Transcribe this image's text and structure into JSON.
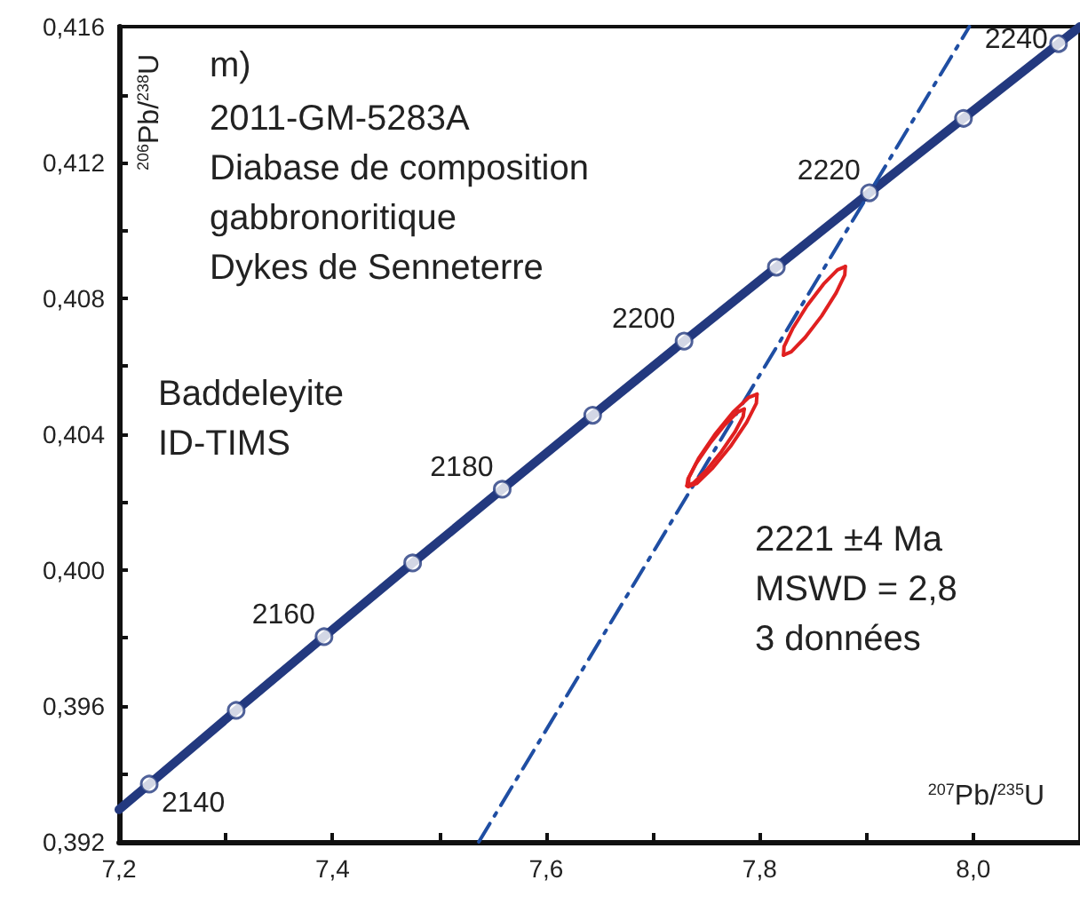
{
  "chart_data": {
    "type": "line",
    "title": "m)",
    "subtitle": "2011-GM-5283A\nDiabase de composition\ngabbronoritique\nDykes de Senneterre",
    "xlabel": "$^{207}$Pb/$^{235}$U",
    "ylabel": "$^{206}$Pb/$^{238}$U",
    "xlim": [
      7.2,
      8.1
    ],
    "ylim": [
      0.392,
      0.416
    ],
    "xticks": [
      {
        "value": 7.2,
        "label": "7,2"
      },
      {
        "value": 7.3,
        "label": null
      },
      {
        "value": 7.4,
        "label": "7,4"
      },
      {
        "value": 7.5,
        "label": null
      },
      {
        "value": 7.6,
        "label": "7,6"
      },
      {
        "value": 7.7,
        "label": null
      },
      {
        "value": 7.8,
        "label": "7,8"
      },
      {
        "value": 7.9,
        "label": null
      },
      {
        "value": 8.0,
        "label": "8,0"
      },
      {
        "value": 8.1,
        "label": null
      }
    ],
    "yticks": [
      {
        "value": 0.392,
        "label": "0,392"
      },
      {
        "value": 0.394,
        "label": null
      },
      {
        "value": 0.396,
        "label": "0,396"
      },
      {
        "value": 0.398,
        "label": null
      },
      {
        "value": 0.4,
        "label": "0,400"
      },
      {
        "value": 0.402,
        "label": null
      },
      {
        "value": 0.404,
        "label": "0,404"
      },
      {
        "value": 0.406,
        "label": null
      },
      {
        "value": 0.408,
        "label": "0,408"
      },
      {
        "value": 0.41,
        "label": null
      },
      {
        "value": 0.412,
        "label": "0,412"
      },
      {
        "value": 0.414,
        "label": null
      },
      {
        "value": 0.416,
        "label": "0,416"
      }
    ],
    "series": [
      {
        "color": "#23397f",
        "marker": "none",
        "line_style": "solid",
        "x": [
          7.2,
          7.2283,
          7.3097,
          7.392,
          7.475,
          7.5589,
          7.6436,
          7.7292,
          7.8156,
          7.9028,
          7.9909,
          8.0799,
          8.1
        ],
        "values": [
          0.39295,
          0.3937,
          0.39587,
          0.39804,
          0.40021,
          0.40238,
          0.40456,
          0.40674,
          0.40892,
          0.41111,
          0.4133,
          0.4155,
          0.416
        ]
      },
      {
        "type": "scatter",
        "color": "#23397f",
        "marker": "circle",
        "x": [
          7.2283,
          7.3097,
          7.392,
          7.475,
          7.5589,
          7.6436,
          7.7292,
          7.8156,
          7.9028,
          7.9909,
          8.0799
        ],
        "values": [
          0.3937,
          0.39587,
          0.39804,
          0.40021,
          0.40238,
          0.40456,
          0.40674,
          0.40892,
          0.41111,
          0.4133,
          0.4155
        ]
      },
      {
        "color": "#1f4ea3",
        "marker": "none",
        "line_style": "dashed",
        "x": [
          7.537,
          7.9028,
          7.9964
        ],
        "values": [
          0.392,
          0.41111,
          0.416
        ]
      },
      {
        "color": "#e02020",
        "marker": "none",
        "line_style": "solid",
        "x": [
          7.8802,
          7.8797,
          7.8716,
          7.858,
          7.8426,
          7.8296,
          7.8223
        ],
        "values": [
          0.40894,
          0.40869,
          0.40816,
          0.40748,
          0.40685,
          0.40643,
          0.40633
        ]
      },
      {
        "color": "#e02020",
        "marker": "none",
        "line_style": "solid",
        "x": [
          7.8223,
          7.8228,
          7.8309,
          7.8445,
          7.8598,
          7.8729,
          7.8802
        ],
        "values": [
          0.40633,
          0.40658,
          0.40711,
          0.40779,
          0.40842,
          0.40884,
          0.40894
        ]
      },
      {
        "color": "#e02020",
        "marker": "none",
        "line_style": "solid",
        "x": [
          7.7975,
          7.7969,
          7.7878,
          7.7726,
          7.7555,
          7.741,
          7.7331
        ],
        "values": [
          0.40518,
          0.40491,
          0.40435,
          0.40364,
          0.40299,
          0.40255,
          0.40246
        ]
      },
      {
        "color": "#e02020",
        "marker": "none",
        "line_style": "solid",
        "x": [
          7.7331,
          7.7337,
          7.7428,
          7.758,
          7.775,
          7.7896,
          7.7975
        ],
        "values": [
          0.40246,
          0.40272,
          0.40329,
          0.40399,
          0.40465,
          0.40508,
          0.40518
        ]
      },
      {
        "color": "#e02020",
        "marker": "none",
        "line_style": "solid",
        "x": [
          7.7855,
          7.7845,
          7.7767,
          7.764,
          7.7499,
          7.7382,
          7.7319
        ],
        "values": [
          0.40474,
          0.40452,
          0.40406,
          0.40348,
          0.40293,
          0.40257,
          0.40248
        ]
      },
      {
        "color": "#e02020",
        "marker": "none",
        "line_style": "solid",
        "x": [
          7.7319,
          7.7329,
          7.7407,
          7.7534,
          7.7674,
          7.7792,
          7.7855
        ],
        "values": [
          0.40248,
          0.40269,
          0.40315,
          0.40373,
          0.40428,
          0.40465,
          0.40474
        ]
      }
    ],
    "annotations": [
      "Baddeleyite\nID-TIMS",
      "2221 ±4 Ma\nMSWD = 2,8\n3 données",
      {
        "text": "2140",
        "x": 7.2283,
        "y": 0.3937
      },
      {
        "text": "2160",
        "x": 7.392,
        "y": 0.39804
      },
      {
        "text": "2180",
        "x": 7.5589,
        "y": 0.40238
      },
      {
        "text": "2200",
        "x": 7.7292,
        "y": 0.40674
      },
      {
        "text": "2220",
        "x": 7.9028,
        "y": 0.41111
      },
      {
        "text": "2240",
        "x": 8.0799,
        "y": 0.4155
      }
    ]
  }
}
